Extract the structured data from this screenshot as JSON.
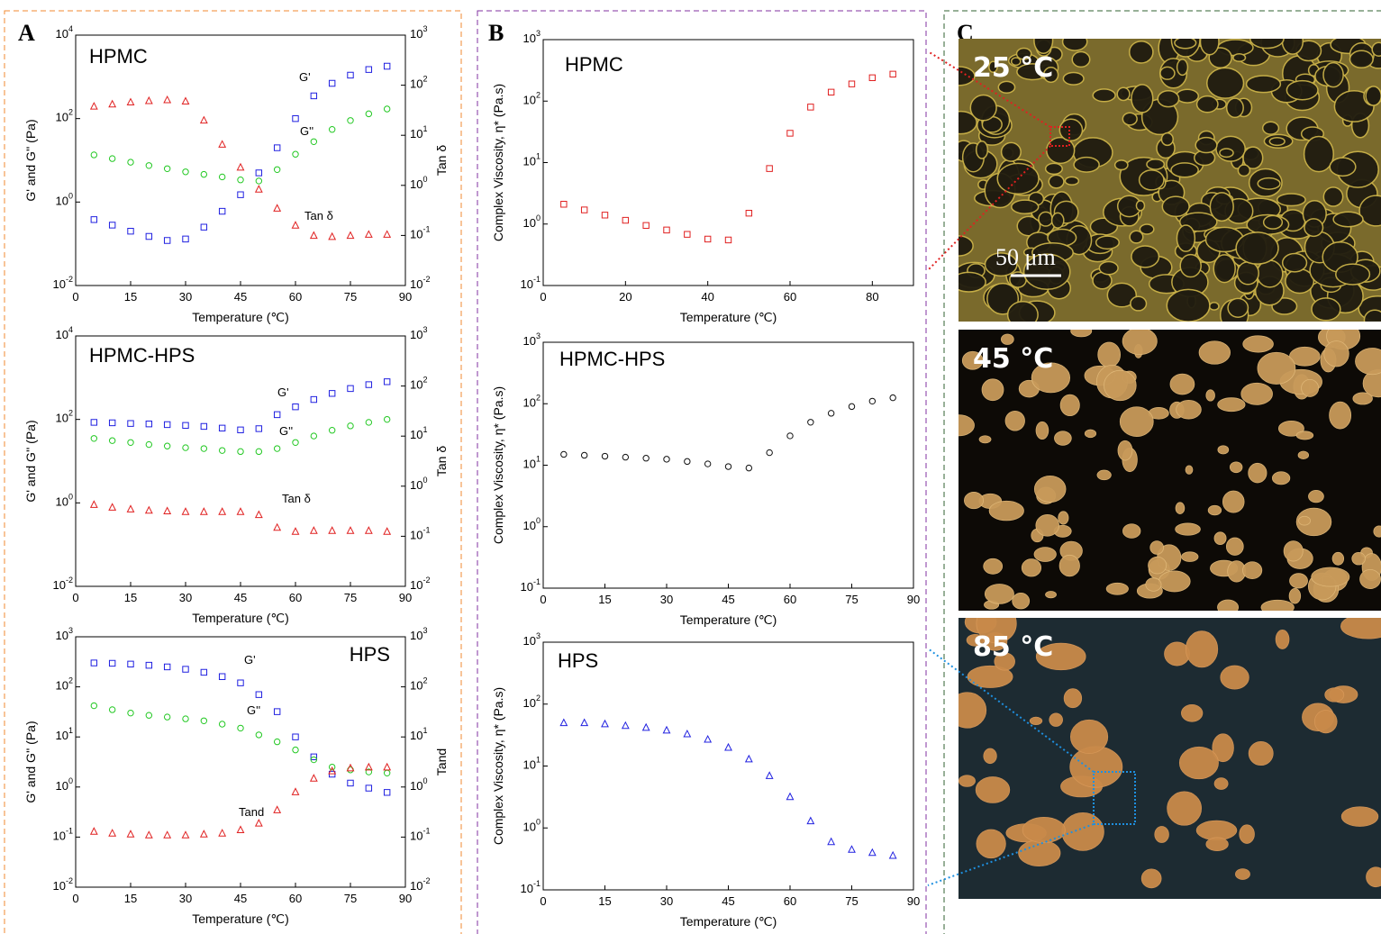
{
  "panels": {
    "a": "A",
    "b": "B",
    "c": "C"
  },
  "chart_data": [
    {
      "type": "line",
      "title": "HPMC",
      "xlabel": "Temperature (℃)",
      "ylabel": "G' and G'' (Pa)",
      "y2label": "Tan δ",
      "ylog": true,
      "y2log": true,
      "xlim": [
        0,
        90
      ],
      "xticks": [
        0,
        15,
        30,
        45,
        60,
        75,
        90
      ],
      "ylim": [
        0.01,
        10000
      ],
      "yticks": [
        {
          "value": 0.01,
          "label": "10",
          "sup": "-2"
        },
        {
          "value": 1,
          "label": "10",
          "sup": "0"
        },
        {
          "value": 100,
          "label": "10",
          "sup": "2"
        },
        {
          "value": 10000,
          "label": "10",
          "sup": "4"
        }
      ],
      "y2lim": [
        0.01,
        1000
      ],
      "y2ticks": [
        {
          "value": 0.01,
          "label": "10",
          "sup": "-2"
        },
        {
          "value": 0.1,
          "label": "10",
          "sup": "-1"
        },
        {
          "value": 1,
          "label": "10",
          "sup": "0"
        },
        {
          "value": 10,
          "label": "10",
          "sup": "1"
        },
        {
          "value": 100,
          "label": "10",
          "sup": "2"
        },
        {
          "value": 1000,
          "label": "10",
          "sup": "3"
        }
      ],
      "x": [
        5,
        10,
        15,
        20,
        25,
        30,
        35,
        40,
        45,
        50,
        55,
        60,
        65,
        70,
        75,
        80,
        85
      ],
      "series": [
        {
          "name": "G'",
          "color": "#2020e0",
          "marker": "square",
          "values": [
            0.38,
            0.28,
            0.2,
            0.15,
            0.12,
            0.13,
            0.25,
            0.6,
            1.5,
            5,
            20,
            100,
            350,
            700,
            1100,
            1500,
            1800
          ]
        },
        {
          "name": "G''",
          "color": "#22c822",
          "marker": "circle",
          "values": [
            13.5,
            11,
            9,
            7.5,
            6.3,
            5.3,
            4.6,
            4,
            3.4,
            3.2,
            6,
            14,
            28,
            55,
            90,
            130,
            170
          ]
        },
        {
          "name": "Tan δ",
          "color": "#e02020",
          "marker": "triangle",
          "axis": "y2",
          "values": [
            38,
            42,
            46,
            49,
            51,
            48,
            20,
            6.6,
            2.3,
            0.84,
            0.35,
            0.16,
            0.1,
            0.095,
            0.1,
            0.105,
            0.105
          ]
        }
      ],
      "annotations": [
        {
          "text": "G'"
        },
        {
          "text": "G''"
        },
        {
          "text": "Tan δ"
        }
      ]
    },
    {
      "type": "line",
      "title": "HPMC-HPS",
      "xlabel": "Temperature (℃)",
      "ylabel": "G' and G'' (Pa)",
      "y2label": "Tan δ",
      "ylog": true,
      "y2log": true,
      "xlim": [
        0,
        90
      ],
      "xticks": [
        0,
        15,
        30,
        45,
        60,
        75,
        90
      ],
      "ylim": [
        0.01,
        10000
      ],
      "yticks": [
        {
          "value": 0.01,
          "label": "10",
          "sup": "-2"
        },
        {
          "value": 1,
          "label": "10",
          "sup": "0"
        },
        {
          "value": 100,
          "label": "10",
          "sup": "2"
        },
        {
          "value": 10000,
          "label": "10",
          "sup": "4"
        }
      ],
      "y2lim": [
        0.01,
        1000
      ],
      "y2ticks": [
        {
          "value": 0.01,
          "label": "10",
          "sup": "-2"
        },
        {
          "value": 0.1,
          "label": "10",
          "sup": "-1"
        },
        {
          "value": 1,
          "label": "10",
          "sup": "0"
        },
        {
          "value": 10,
          "label": "10",
          "sup": "1"
        },
        {
          "value": 100,
          "label": "10",
          "sup": "2"
        },
        {
          "value": 1000,
          "label": "10",
          "sup": "3"
        }
      ],
      "x": [
        5,
        10,
        15,
        20,
        25,
        30,
        35,
        40,
        45,
        50,
        55,
        60,
        65,
        70,
        75,
        80,
        85
      ],
      "series": [
        {
          "name": "G'",
          "color": "#2020e0",
          "marker": "square",
          "values": [
            85,
            83,
            80,
            78,
            75,
            72,
            68,
            62,
            56,
            60,
            130,
            200,
            300,
            420,
            550,
            680,
            800
          ]
        },
        {
          "name": "G''",
          "color": "#22c822",
          "marker": "circle",
          "values": [
            35,
            31,
            28,
            25,
            23,
            21,
            20,
            18,
            17,
            17,
            20,
            28,
            40,
            55,
            70,
            85,
            100
          ]
        },
        {
          "name": "Tan δ",
          "color": "#e02020",
          "marker": "triangle",
          "axis": "y2",
          "values": [
            0.43,
            0.38,
            0.35,
            0.33,
            0.32,
            0.31,
            0.31,
            0.31,
            0.31,
            0.27,
            0.15,
            0.125,
            0.13,
            0.13,
            0.13,
            0.13,
            0.125
          ]
        }
      ],
      "annotations": [
        {
          "text": "G'"
        },
        {
          "text": "G''"
        },
        {
          "text": "Tan δ"
        }
      ]
    },
    {
      "type": "line",
      "title": "HPS",
      "xlabel": "Temperature (℃)",
      "ylabel": "G' and G'' (Pa)",
      "y2label": "Tand",
      "ylog": true,
      "y2log": true,
      "xlim": [
        0,
        90
      ],
      "xticks": [
        0,
        15,
        30,
        45,
        60,
        75,
        90
      ],
      "ylim": [
        0.01,
        1000
      ],
      "yticks": [
        {
          "value": 0.01,
          "label": "10",
          "sup": "-2"
        },
        {
          "value": 0.1,
          "label": "10",
          "sup": "-1"
        },
        {
          "value": 1,
          "label": "10",
          "sup": "0"
        },
        {
          "value": 10,
          "label": "10",
          "sup": "1"
        },
        {
          "value": 100,
          "label": "10",
          "sup": "2"
        },
        {
          "value": 1000,
          "label": "10",
          "sup": "3"
        }
      ],
      "y2lim": [
        0.01,
        1000
      ],
      "y2ticks": [
        {
          "value": 0.01,
          "label": "10",
          "sup": "-2"
        },
        {
          "value": 0.1,
          "label": "10",
          "sup": "-1"
        },
        {
          "value": 1,
          "label": "10",
          "sup": "0"
        },
        {
          "value": 10,
          "label": "10",
          "sup": "1"
        },
        {
          "value": 100,
          "label": "10",
          "sup": "2"
        },
        {
          "value": 1000,
          "label": "10",
          "sup": "3"
        }
      ],
      "x": [
        5,
        10,
        15,
        20,
        25,
        30,
        35,
        40,
        45,
        50,
        55,
        60,
        65,
        70,
        75,
        80,
        85
      ],
      "series": [
        {
          "name": "G'",
          "color": "#2020e0",
          "marker": "square",
          "values": [
            300,
            295,
            285,
            270,
            250,
            225,
            195,
            160,
            120,
            70,
            32,
            10,
            4,
            1.8,
            1.2,
            0.95,
            0.78
          ]
        },
        {
          "name": "G''",
          "color": "#22c822",
          "marker": "circle",
          "values": [
            42,
            35,
            30,
            27,
            25,
            23,
            21,
            18,
            15,
            11,
            8,
            5.5,
            3.5,
            2.5,
            2.2,
            2.0,
            1.9
          ]
        },
        {
          "name": "Tand",
          "color": "#e02020",
          "marker": "triangle",
          "axis": "y2",
          "values": [
            0.13,
            0.12,
            0.115,
            0.11,
            0.11,
            0.11,
            0.115,
            0.12,
            0.14,
            0.19,
            0.35,
            0.8,
            1.5,
            2.1,
            2.4,
            2.5,
            2.5
          ]
        }
      ],
      "annotations": [
        {
          "text": "G'"
        },
        {
          "text": "G''"
        },
        {
          "text": "Tand"
        }
      ]
    },
    {
      "type": "line",
      "title": "HPMC",
      "xlabel": "Temperature (℃)",
      "ylabel": "Complex Viscosity, η* (Pa.s)",
      "ylog": true,
      "xlim": [
        0,
        90
      ],
      "xticks": [
        0,
        20,
        40,
        60,
        80
      ],
      "ylim": [
        0.1,
        1000
      ],
      "yticks": [
        {
          "value": 0.1,
          "label": "10",
          "sup": "-1"
        },
        {
          "value": 1,
          "label": "10",
          "sup": "0"
        },
        {
          "value": 10,
          "label": "10",
          "sup": "1"
        },
        {
          "value": 100,
          "label": "10",
          "sup": "2"
        },
        {
          "value": 1000,
          "label": "10",
          "sup": "3"
        }
      ],
      "x": [
        5,
        10,
        15,
        20,
        25,
        30,
        35,
        40,
        45,
        50,
        55,
        60,
        65,
        70,
        75,
        80,
        85
      ],
      "series": [
        {
          "name": "HPMC",
          "color": "#e02020",
          "marker": "square",
          "values": [
            2.1,
            1.7,
            1.4,
            1.15,
            0.95,
            0.8,
            0.68,
            0.57,
            0.55,
            1.5,
            8,
            30,
            80,
            140,
            190,
            240,
            275
          ]
        }
      ]
    },
    {
      "type": "line",
      "title": "HPMC-HPS",
      "xlabel": "Temperature (℃)",
      "ylabel": "Complex Viscosity, η* (Pa.s)",
      "ylog": true,
      "xlim": [
        0,
        90
      ],
      "xticks": [
        0,
        15,
        30,
        45,
        60,
        75,
        90
      ],
      "ylim": [
        0.1,
        1000
      ],
      "yticks": [
        {
          "value": 0.1,
          "label": "10",
          "sup": "-1"
        },
        {
          "value": 1,
          "label": "10",
          "sup": "0"
        },
        {
          "value": 10,
          "label": "10",
          "sup": "1"
        },
        {
          "value": 100,
          "label": "10",
          "sup": "2"
        },
        {
          "value": 1000,
          "label": "10",
          "sup": "3"
        }
      ],
      "x": [
        5,
        10,
        15,
        20,
        25,
        30,
        35,
        40,
        45,
        50,
        55,
        60,
        65,
        70,
        75,
        80,
        85
      ],
      "series": [
        {
          "name": "HPMC-HPS",
          "color": "#111111",
          "marker": "circle",
          "values": [
            15,
            14.5,
            14,
            13.5,
            13,
            12.5,
            11.5,
            10.5,
            9.5,
            9,
            16,
            30,
            50,
            70,
            90,
            110,
            125
          ]
        }
      ]
    },
    {
      "type": "line",
      "title": "HPS",
      "xlabel": "Temperature (℃)",
      "ylabel": "Complex Viscosity, η* (Pa.s)",
      "ylog": true,
      "xlim": [
        0,
        90
      ],
      "xticks": [
        0,
        15,
        30,
        45,
        60,
        75,
        90
      ],
      "ylim": [
        0.1,
        1000
      ],
      "yticks": [
        {
          "value": 0.1,
          "label": "10",
          "sup": "-1"
        },
        {
          "value": 1,
          "label": "10",
          "sup": "0"
        },
        {
          "value": 10,
          "label": "10",
          "sup": "1"
        },
        {
          "value": 100,
          "label": "10",
          "sup": "2"
        },
        {
          "value": 1000,
          "label": "10",
          "sup": "3"
        }
      ],
      "x": [
        5,
        10,
        15,
        20,
        25,
        30,
        35,
        40,
        45,
        50,
        55,
        60,
        65,
        70,
        75,
        80,
        85
      ],
      "series": [
        {
          "name": "HPS",
          "color": "#2020e0",
          "marker": "triangle",
          "values": [
            50,
            50,
            48,
            45,
            42,
            38,
            33,
            27,
            20,
            13,
            7,
            3.2,
            1.3,
            0.6,
            0.45,
            0.4,
            0.36
          ]
        }
      ]
    }
  ],
  "micrographs": [
    {
      "label": "25 °C"
    },
    {
      "label": "45 °C"
    },
    {
      "label": "85 °C"
    }
  ],
  "scale_bar": "50 μm"
}
